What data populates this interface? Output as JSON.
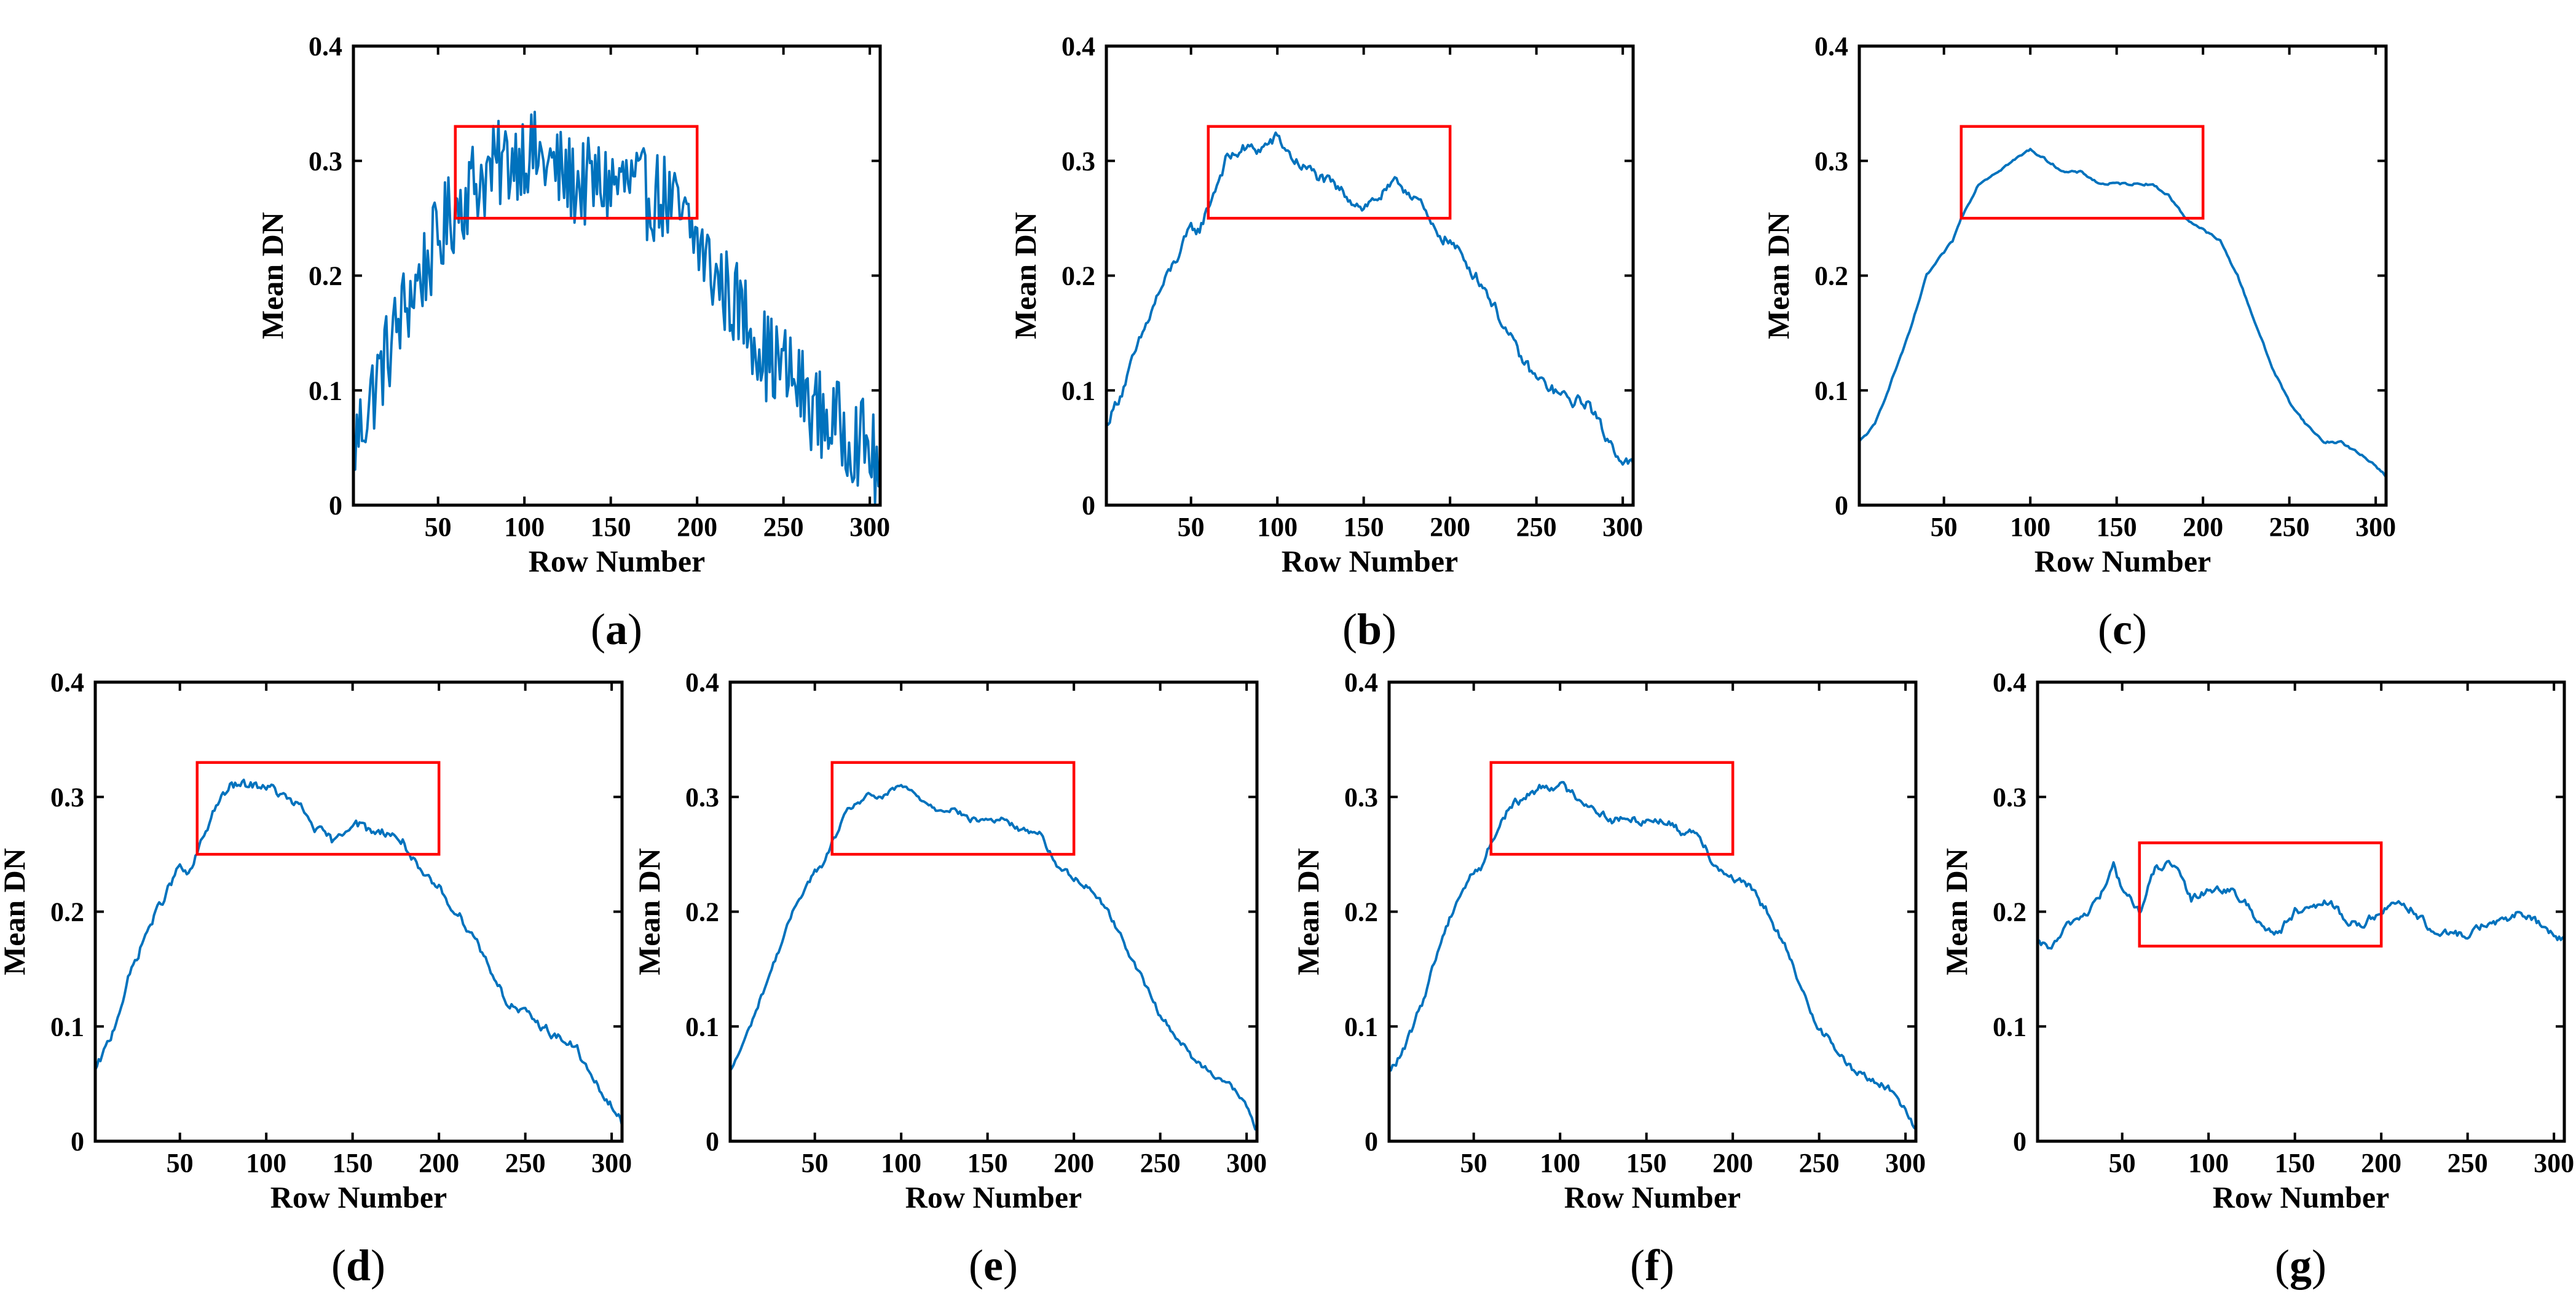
{
  "colors": {
    "series": "#0072BD",
    "box": "#FF0000",
    "axis": "#000000"
  },
  "chart_data": [
    {
      "type": "line",
      "panel_label": "a",
      "xlabel": "Row Number",
      "ylabel": "Mean DN",
      "xlim": [
        1,
        306
      ],
      "ylim": [
        0,
        0.4
      ],
      "xticks": [
        50,
        100,
        150,
        200,
        250,
        300
      ],
      "yticks": [
        0,
        0.1,
        0.2,
        0.3,
        0.4
      ],
      "highlight_box": {
        "x": [
          60,
          200
        ],
        "y": [
          0.25,
          0.33
        ]
      },
      "noise": 0.04,
      "x": [
        1,
        10,
        20,
        30,
        40,
        50,
        60,
        70,
        80,
        90,
        100,
        110,
        120,
        130,
        140,
        150,
        160,
        170,
        180,
        190,
        200,
        210,
        220,
        230,
        240,
        250,
        260,
        270,
        280,
        290,
        300,
        306
      ],
      "y": [
        0.05,
        0.09,
        0.13,
        0.17,
        0.2,
        0.23,
        0.26,
        0.28,
        0.29,
        0.3,
        0.31,
        0.3,
        0.29,
        0.28,
        0.28,
        0.28,
        0.28,
        0.27,
        0.27,
        0.25,
        0.23,
        0.2,
        0.18,
        0.16,
        0.13,
        0.12,
        0.1,
        0.08,
        0.07,
        0.06,
        0.05,
        0.02
      ]
    },
    {
      "type": "line",
      "panel_label": "b",
      "xlabel": "Row Number",
      "ylabel": "Mean DN",
      "xlim": [
        1,
        306
      ],
      "ylim": [
        0,
        0.4
      ],
      "xticks": [
        50,
        100,
        150,
        200,
        250,
        300
      ],
      "yticks": [
        0,
        0.1,
        0.2,
        0.3,
        0.4
      ],
      "highlight_box": {
        "x": [
          60,
          200
        ],
        "y": [
          0.25,
          0.33
        ]
      },
      "noise": 0.01,
      "x": [
        1,
        10,
        20,
        30,
        40,
        50,
        55,
        60,
        70,
        80,
        90,
        100,
        110,
        120,
        130,
        140,
        150,
        160,
        170,
        180,
        190,
        200,
        210,
        220,
        230,
        240,
        250,
        260,
        270,
        280,
        290,
        300,
        306
      ],
      "y": [
        0.07,
        0.1,
        0.14,
        0.18,
        0.21,
        0.24,
        0.24,
        0.26,
        0.3,
        0.31,
        0.31,
        0.32,
        0.3,
        0.29,
        0.28,
        0.27,
        0.26,
        0.27,
        0.28,
        0.27,
        0.24,
        0.23,
        0.21,
        0.19,
        0.16,
        0.13,
        0.11,
        0.1,
        0.09,
        0.09,
        0.06,
        0.04,
        0.035
      ]
    },
    {
      "type": "line",
      "panel_label": "c",
      "xlabel": "Row Number",
      "ylabel": "Mean DN",
      "xlim": [
        1,
        306
      ],
      "ylim": [
        0,
        0.4
      ],
      "xticks": [
        50,
        100,
        150,
        200,
        250,
        300
      ],
      "yticks": [
        0,
        0.1,
        0.2,
        0.3,
        0.4
      ],
      "highlight_box": {
        "x": [
          60,
          200
        ],
        "y": [
          0.25,
          0.33
        ]
      },
      "noise": 0.002,
      "x": [
        1,
        10,
        20,
        30,
        40,
        50,
        55,
        60,
        70,
        80,
        90,
        100,
        110,
        120,
        130,
        140,
        150,
        160,
        170,
        180,
        190,
        200,
        210,
        220,
        230,
        240,
        250,
        260,
        270,
        280,
        290,
        300,
        306
      ],
      "y": [
        0.055,
        0.07,
        0.11,
        0.15,
        0.2,
        0.22,
        0.23,
        0.25,
        0.28,
        0.29,
        0.3,
        0.31,
        0.3,
        0.29,
        0.29,
        0.28,
        0.28,
        0.28,
        0.28,
        0.27,
        0.25,
        0.24,
        0.23,
        0.2,
        0.16,
        0.12,
        0.09,
        0.07,
        0.055,
        0.055,
        0.045,
        0.035,
        0.025
      ]
    },
    {
      "type": "line",
      "panel_label": "d",
      "xlabel": "Row Number",
      "ylabel": "Mean DN",
      "xlim": [
        1,
        306
      ],
      "ylim": [
        0,
        0.4
      ],
      "xticks": [
        50,
        100,
        150,
        200,
        250,
        300
      ],
      "yticks": [
        0,
        0.1,
        0.2,
        0.3,
        0.4
      ],
      "highlight_box": {
        "x": [
          60,
          200
        ],
        "y": [
          0.25,
          0.33
        ]
      },
      "noise": 0.008,
      "x": [
        1,
        10,
        20,
        30,
        40,
        50,
        55,
        60,
        70,
        80,
        90,
        100,
        110,
        120,
        130,
        140,
        150,
        160,
        170,
        180,
        190,
        200,
        210,
        220,
        230,
        240,
        250,
        260,
        270,
        280,
        290,
        300,
        306
      ],
      "y": [
        0.06,
        0.09,
        0.14,
        0.18,
        0.21,
        0.24,
        0.23,
        0.25,
        0.29,
        0.31,
        0.31,
        0.31,
        0.3,
        0.29,
        0.27,
        0.26,
        0.28,
        0.27,
        0.27,
        0.26,
        0.23,
        0.22,
        0.2,
        0.18,
        0.15,
        0.12,
        0.11,
        0.1,
        0.09,
        0.08,
        0.05,
        0.03,
        0.015
      ]
    },
    {
      "type": "line",
      "panel_label": "e",
      "xlabel": "Row Number",
      "ylabel": "Mean DN",
      "xlim": [
        1,
        306
      ],
      "ylim": [
        0,
        0.4
      ],
      "xticks": [
        50,
        100,
        150,
        200,
        250,
        300
      ],
      "yticks": [
        0,
        0.1,
        0.2,
        0.3,
        0.4
      ],
      "highlight_box": {
        "x": [
          60,
          200
        ],
        "y": [
          0.25,
          0.33
        ]
      },
      "noise": 0.005,
      "x": [
        1,
        10,
        20,
        30,
        40,
        50,
        55,
        60,
        70,
        80,
        90,
        100,
        110,
        120,
        130,
        140,
        150,
        160,
        170,
        180,
        190,
        200,
        210,
        220,
        230,
        240,
        250,
        260,
        270,
        280,
        290,
        300,
        306
      ],
      "y": [
        0.06,
        0.09,
        0.13,
        0.17,
        0.21,
        0.235,
        0.24,
        0.26,
        0.29,
        0.3,
        0.3,
        0.31,
        0.3,
        0.29,
        0.29,
        0.28,
        0.28,
        0.28,
        0.27,
        0.27,
        0.24,
        0.23,
        0.22,
        0.2,
        0.17,
        0.14,
        0.11,
        0.09,
        0.07,
        0.06,
        0.05,
        0.03,
        0.01
      ]
    },
    {
      "type": "line",
      "panel_label": "f",
      "xlabel": "Row Number",
      "ylabel": "Mean DN",
      "xlim": [
        1,
        306
      ],
      "ylim": [
        0,
        0.4
      ],
      "xticks": [
        50,
        100,
        150,
        200,
        250,
        300
      ],
      "yticks": [
        0,
        0.1,
        0.2,
        0.3,
        0.4
      ],
      "highlight_box": {
        "x": [
          60,
          200
        ],
        "y": [
          0.25,
          0.33
        ]
      },
      "noise": 0.007,
      "x": [
        1,
        10,
        20,
        30,
        40,
        50,
        55,
        60,
        70,
        80,
        90,
        100,
        110,
        120,
        130,
        140,
        150,
        160,
        170,
        180,
        190,
        200,
        210,
        220,
        230,
        240,
        250,
        260,
        270,
        280,
        290,
        300,
        306
      ],
      "y": [
        0.06,
        0.08,
        0.12,
        0.17,
        0.21,
        0.235,
        0.24,
        0.26,
        0.29,
        0.3,
        0.31,
        0.31,
        0.3,
        0.29,
        0.28,
        0.28,
        0.28,
        0.28,
        0.27,
        0.27,
        0.24,
        0.23,
        0.22,
        0.2,
        0.17,
        0.13,
        0.1,
        0.08,
        0.06,
        0.055,
        0.045,
        0.03,
        0.01
      ]
    },
    {
      "type": "line",
      "panel_label": "g",
      "xlabel": "Row Number",
      "ylabel": "Mean DN",
      "xlim": [
        1,
        306
      ],
      "ylim": [
        0,
        0.4
      ],
      "xticks": [
        50,
        100,
        150,
        200,
        250,
        300
      ],
      "yticks": [
        0,
        0.1,
        0.2,
        0.3,
        0.4
      ],
      "highlight_box": {
        "x": [
          60,
          200
        ],
        "y": [
          0.17,
          0.26
        ]
      },
      "noise": 0.007,
      "x": [
        1,
        10,
        20,
        30,
        40,
        45,
        50,
        60,
        70,
        80,
        90,
        100,
        110,
        120,
        130,
        140,
        150,
        160,
        170,
        180,
        190,
        200,
        210,
        220,
        230,
        240,
        250,
        260,
        270,
        280,
        290,
        300,
        306
      ],
      "y": [
        0.17,
        0.17,
        0.19,
        0.2,
        0.22,
        0.24,
        0.22,
        0.2,
        0.24,
        0.24,
        0.21,
        0.22,
        0.22,
        0.21,
        0.19,
        0.18,
        0.2,
        0.2,
        0.21,
        0.19,
        0.19,
        0.2,
        0.21,
        0.2,
        0.18,
        0.18,
        0.18,
        0.19,
        0.19,
        0.2,
        0.19,
        0.18,
        0.175
      ]
    }
  ]
}
